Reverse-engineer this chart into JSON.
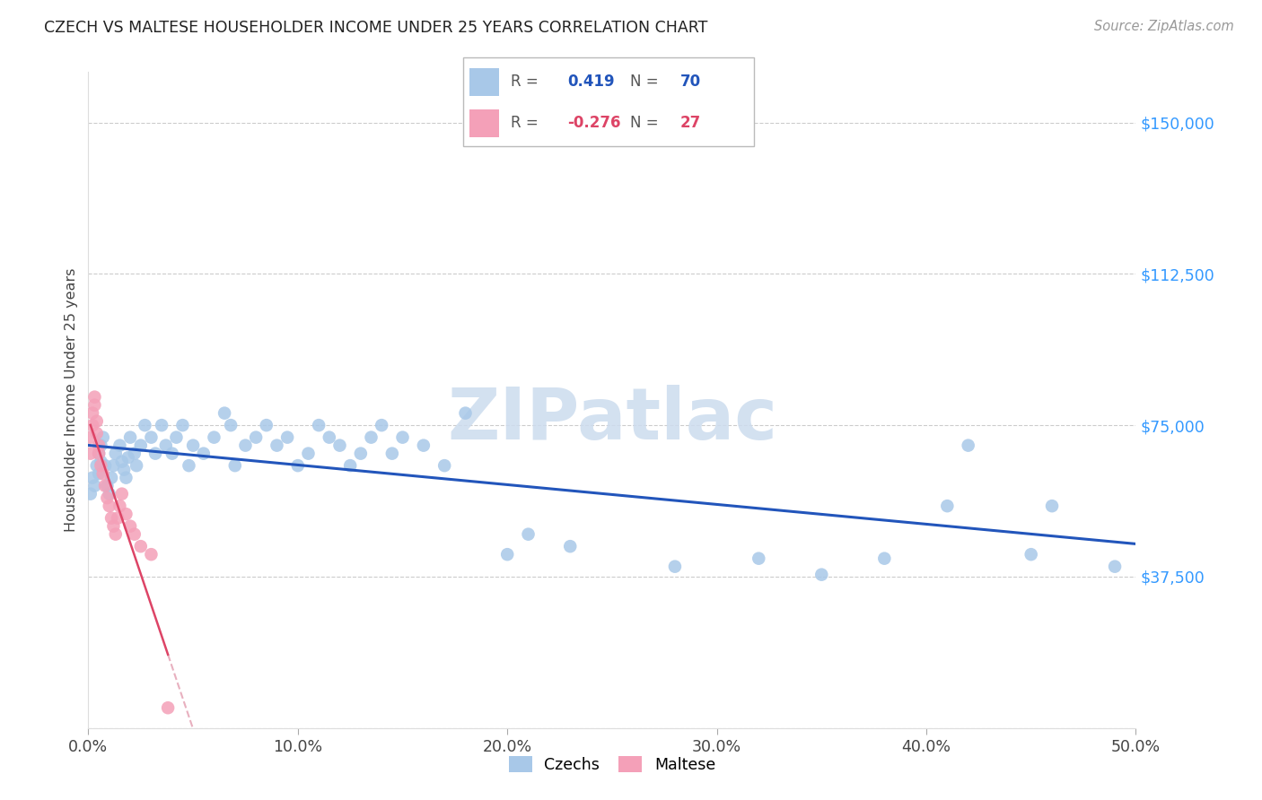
{
  "title": "CZECH VS MALTESE HOUSEHOLDER INCOME UNDER 25 YEARS CORRELATION CHART",
  "source": "Source: ZipAtlas.com",
  "ylabel": "Householder Income Under 25 years",
  "xlim": [
    0.0,
    0.5
  ],
  "ylim": [
    0,
    162500
  ],
  "yticks": [
    0,
    37500,
    75000,
    112500,
    150000
  ],
  "ytick_labels": [
    "",
    "$37,500",
    "$75,000",
    "$112,500",
    "$150,000"
  ],
  "xticks": [
    0.0,
    0.1,
    0.2,
    0.3,
    0.4,
    0.5
  ],
  "xtick_labels": [
    "0.0%",
    "10.0%",
    "20.0%",
    "30.0%",
    "40.0%",
    "50.0%"
  ],
  "czech_color": "#a8c8e8",
  "maltese_color": "#f4a0b8",
  "czech_line_color": "#2255bb",
  "maltese_line_color": "#dd4466",
  "maltese_dash_color": "#e8b0bf",
  "r_czech": "0.419",
  "n_czech": "70",
  "r_maltese": "-0.276",
  "n_maltese": "27",
  "watermark": "ZIPatlас",
  "watermark_color": "#ccdcee",
  "title_color": "#222222",
  "ytick_color": "#3399ff",
  "xtick_color": "#444444",
  "grid_color": "#cccccc",
  "czech_x": [
    0.001,
    0.002,
    0.003,
    0.004,
    0.005,
    0.005,
    0.006,
    0.006,
    0.007,
    0.008,
    0.009,
    0.01,
    0.011,
    0.012,
    0.013,
    0.015,
    0.016,
    0.017,
    0.018,
    0.019,
    0.02,
    0.022,
    0.023,
    0.025,
    0.027,
    0.03,
    0.032,
    0.035,
    0.037,
    0.04,
    0.042,
    0.045,
    0.048,
    0.05,
    0.055,
    0.06,
    0.065,
    0.068,
    0.07,
    0.075,
    0.08,
    0.085,
    0.09,
    0.095,
    0.1,
    0.105,
    0.11,
    0.115,
    0.12,
    0.125,
    0.13,
    0.135,
    0.14,
    0.145,
    0.15,
    0.16,
    0.17,
    0.18,
    0.2,
    0.21,
    0.23,
    0.28,
    0.32,
    0.35,
    0.38,
    0.41,
    0.42,
    0.45,
    0.46,
    0.49
  ],
  "czech_y": [
    58000,
    62000,
    60000,
    65000,
    63000,
    68000,
    66000,
    70000,
    72000,
    65000,
    60000,
    58000,
    62000,
    65000,
    68000,
    70000,
    66000,
    64000,
    62000,
    67000,
    72000,
    68000,
    65000,
    70000,
    75000,
    72000,
    68000,
    75000,
    70000,
    68000,
    72000,
    75000,
    65000,
    70000,
    68000,
    72000,
    78000,
    75000,
    65000,
    70000,
    72000,
    75000,
    70000,
    72000,
    65000,
    68000,
    75000,
    72000,
    70000,
    65000,
    68000,
    72000,
    75000,
    68000,
    72000,
    70000,
    65000,
    78000,
    43000,
    48000,
    45000,
    40000,
    42000,
    38000,
    42000,
    55000,
    70000,
    43000,
    55000,
    40000
  ],
  "maltese_x": [
    0.001,
    0.001,
    0.002,
    0.002,
    0.003,
    0.003,
    0.004,
    0.004,
    0.005,
    0.005,
    0.006,
    0.007,
    0.008,
    0.009,
    0.01,
    0.011,
    0.012,
    0.013,
    0.014,
    0.015,
    0.016,
    0.018,
    0.02,
    0.022,
    0.025,
    0.03,
    0.038
  ],
  "maltese_y": [
    68000,
    72000,
    75000,
    78000,
    80000,
    82000,
    76000,
    73000,
    70000,
    68000,
    65000,
    63000,
    60000,
    57000,
    55000,
    52000,
    50000,
    48000,
    52000,
    55000,
    58000,
    53000,
    50000,
    48000,
    45000,
    43000,
    5000
  ]
}
